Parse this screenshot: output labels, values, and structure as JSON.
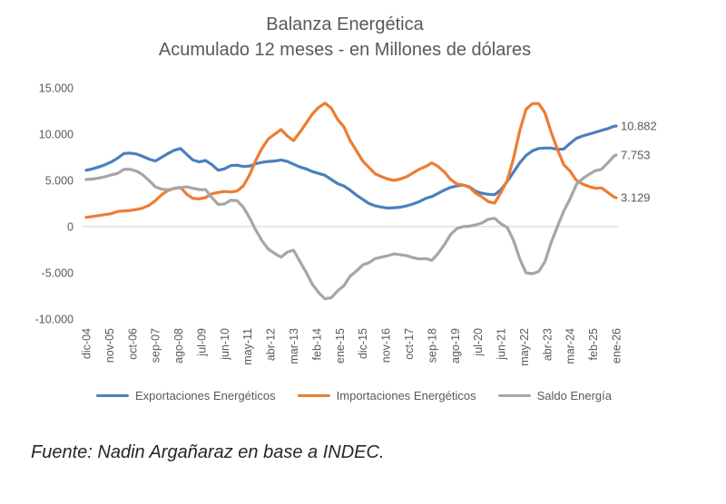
{
  "header": {
    "title": "Balanza Energética",
    "subtitle": "Acumulado 12 meses - en Millones de dólares"
  },
  "footer": {
    "source": "Fuente: Nadin Argañaraz en base a INDEC."
  },
  "colors": {
    "exportaciones": "#4A80BD",
    "importaciones": "#ED7D31",
    "saldo": "#A6A6A6",
    "zero_line": "#D9D9D9",
    "axis_text": "#595959",
    "title_text": "#595959",
    "footer_text": "#262626"
  },
  "chart_data": {
    "type": "line",
    "title": "Balanza Energética",
    "subtitle": "Acumulado 12 meses - en Millones de dólares",
    "unit": "millones de dólares",
    "ylim": [
      -10000,
      15000
    ],
    "grid": "horizontal zero line only",
    "legend_position": "bottom",
    "y_ticks": [
      {
        "value": 15000,
        "label": "15.000"
      },
      {
        "value": 10000,
        "label": "10.000"
      },
      {
        "value": 5000,
        "label": "5.000"
      },
      {
        "value": 0,
        "label": "0"
      },
      {
        "value": -5000,
        "label": "-5.000"
      },
      {
        "value": -10000,
        "label": "-10.000"
      }
    ],
    "x_tick_labels": [
      "dic-04",
      "nov-05",
      "oct-06",
      "sep-07",
      "ago-08",
      "jul-09",
      "jun-10",
      "may-11",
      "abr-12",
      "mar-13",
      "feb-14",
      "ene-15",
      "dic-15",
      "nov-16",
      "oct-17",
      "sep-18",
      "ago-19",
      "jul-20",
      "jun-21",
      "may-22",
      "abr-23",
      "mar-24",
      "feb-25",
      "ene-26"
    ],
    "x_tick_step_months": 11,
    "x_months": [
      0,
      3,
      6,
      9,
      12,
      15,
      18,
      21,
      24,
      27,
      30,
      33,
      36,
      39,
      42,
      45,
      48,
      51,
      54,
      57,
      60,
      63,
      66,
      69,
      72,
      75,
      78,
      81,
      84,
      87,
      90,
      93,
      96,
      99,
      102,
      105,
      108,
      111,
      114,
      117,
      120,
      123,
      126,
      129,
      132,
      135,
      138,
      141,
      144,
      147,
      150,
      153,
      156,
      159,
      162,
      165,
      168,
      171,
      174,
      177,
      180,
      183,
      186,
      189,
      192,
      195,
      198,
      201,
      204,
      207,
      210,
      213,
      216,
      219,
      222,
      225,
      228,
      231,
      234,
      237,
      240,
      243,
      246,
      249,
      252,
      253
    ],
    "series": [
      {
        "name": "Exportaciones Energéticos",
        "color": "#4A80BD",
        "end_label": "10.882",
        "end_value": 10882,
        "values": [
          6100,
          6250,
          6450,
          6700,
          7000,
          7400,
          7900,
          7950,
          7850,
          7600,
          7300,
          7100,
          7500,
          7900,
          8250,
          8450,
          7800,
          7200,
          7000,
          7150,
          6700,
          6100,
          6250,
          6600,
          6650,
          6500,
          6550,
          6800,
          6950,
          7050,
          7100,
          7200,
          7050,
          6750,
          6450,
          6250,
          5950,
          5750,
          5550,
          5100,
          4650,
          4400,
          3950,
          3400,
          2950,
          2500,
          2250,
          2100,
          2000,
          2050,
          2100,
          2250,
          2450,
          2700,
          3050,
          3250,
          3600,
          3950,
          4250,
          4400,
          4500,
          4300,
          3800,
          3600,
          3500,
          3450,
          4000,
          4900,
          5900,
          6900,
          7700,
          8200,
          8450,
          8500,
          8500,
          8350,
          8400,
          9000,
          9550,
          9800,
          10000,
          10200,
          10400,
          10600,
          10850,
          10882
        ]
      },
      {
        "name": "Importaciones Energéticos",
        "color": "#ED7D31",
        "end_label": "3.129",
        "end_value": 3129,
        "values": [
          1000,
          1100,
          1200,
          1300,
          1400,
          1650,
          1700,
          1750,
          1850,
          2000,
          2300,
          2800,
          3450,
          3900,
          4150,
          4250,
          3500,
          3050,
          3000,
          3150,
          3550,
          3700,
          3800,
          3750,
          3850,
          4400,
          5600,
          7200,
          8500,
          9500,
          10000,
          10500,
          9800,
          9300,
          10200,
          11200,
          12200,
          12900,
          13350,
          12800,
          11600,
          10800,
          9300,
          8200,
          7100,
          6400,
          5700,
          5400,
          5150,
          5000,
          5150,
          5400,
          5800,
          6200,
          6500,
          6900,
          6500,
          5900,
          5100,
          4600,
          4500,
          4250,
          3600,
          3200,
          2700,
          2550,
          3700,
          5000,
          7400,
          10400,
          12700,
          13300,
          13300,
          12300,
          10200,
          8300,
          6700,
          6000,
          5000,
          4600,
          4350,
          4150,
          4200,
          3700,
          3200,
          3129
        ]
      },
      {
        "name": "Saldo Energía",
        "color": "#A6A6A6",
        "end_label": "7.753",
        "end_value": 7753,
        "values": [
          5100,
          5150,
          5250,
          5400,
          5600,
          5750,
          6200,
          6200,
          6000,
          5600,
          5000,
          4300,
          4050,
          4000,
          4100,
          4200,
          4300,
          4150,
          4000,
          4000,
          3150,
          2400,
          2450,
          2850,
          2800,
          2100,
          950,
          -400,
          -1550,
          -2450,
          -2900,
          -3300,
          -2750,
          -2550,
          -3750,
          -4950,
          -6250,
          -7150,
          -7800,
          -7700,
          -6950,
          -6400,
          -5350,
          -4800,
          -4150,
          -3900,
          -3450,
          -3300,
          -3150,
          -2950,
          -3050,
          -3150,
          -3350,
          -3500,
          -3450,
          -3650,
          -2900,
          -1950,
          -850,
          -200,
          0,
          50,
          200,
          400,
          800,
          900,
          300,
          -100,
          -1500,
          -3500,
          -5000,
          -5100,
          -4850,
          -3800,
          -1700,
          50,
          1700,
          3000,
          4550,
          5200,
          5650,
          6050,
          6200,
          6900,
          7650,
          7753
        ]
      }
    ]
  }
}
